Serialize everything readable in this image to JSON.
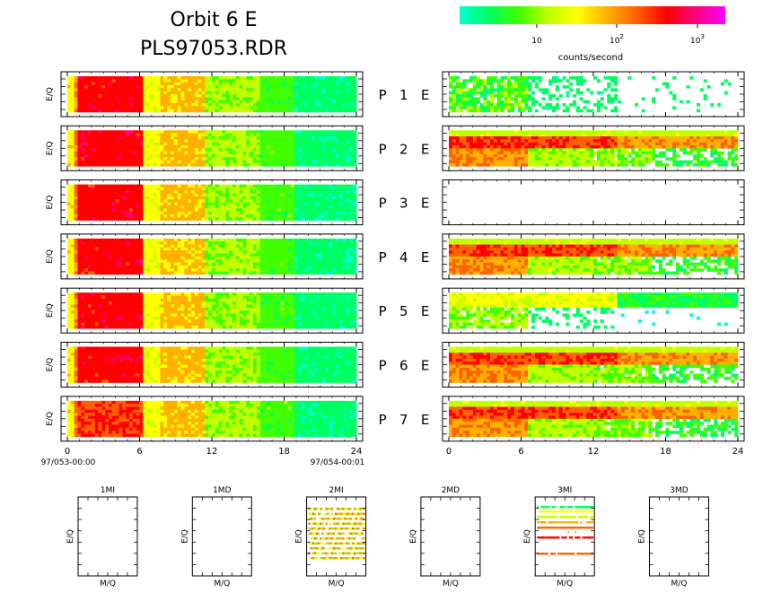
{
  "header": {
    "title": "Orbit  6  E",
    "subtitle": "PLS97053.RDR"
  },
  "colorbar": {
    "label": "counts/second",
    "ticks": [
      {
        "base": "10",
        "exp": ""
      },
      {
        "base": "10",
        "exp": "2"
      },
      {
        "base": "10",
        "exp": "3"
      }
    ],
    "colors": [
      "#00ffd0",
      "#00ff60",
      "#40ff00",
      "#c0ff00",
      "#ffff00",
      "#ffb000",
      "#ff6000",
      "#ff0000",
      "#ff0080",
      "#ff00ff"
    ]
  },
  "chart_data": {
    "type": "heatmap",
    "ylabel": "E/Q",
    "xlim": [
      0,
      24
    ],
    "x_ticks": [
      "0",
      "6",
      "12",
      "18",
      "24"
    ],
    "start_time": "97/053-00:00",
    "end_time": "97/054-00:01",
    "panels": [
      {
        "row_label": "P   1   E",
        "left_profile": "strong",
        "right_profile": "sparse"
      },
      {
        "row_label": "P   2   E",
        "left_profile": "strong",
        "right_profile": "band"
      },
      {
        "row_label": "P   3   E",
        "left_profile": "strong",
        "right_profile": "empty"
      },
      {
        "row_label": "P   4   E",
        "left_profile": "strong",
        "right_profile": "band"
      },
      {
        "row_label": "P   5   E",
        "left_profile": "strong",
        "right_profile": "thin"
      },
      {
        "row_label": "P   6   E",
        "left_profile": "strong",
        "right_profile": "band"
      },
      {
        "row_label": "P   7   E",
        "left_profile": "medium",
        "right_profile": "band"
      }
    ]
  },
  "mass_panels": {
    "xlabel": "M/Q",
    "ylabel": "E/Q",
    "items": [
      {
        "title": "1MI",
        "filled": "none"
      },
      {
        "title": "1MD",
        "filled": "none"
      },
      {
        "title": "2MI",
        "filled": "lines"
      },
      {
        "title": "2MD",
        "filled": "none"
      },
      {
        "title": "3MI",
        "filled": "lines3"
      },
      {
        "title": "3MD",
        "filled": "none"
      }
    ]
  }
}
